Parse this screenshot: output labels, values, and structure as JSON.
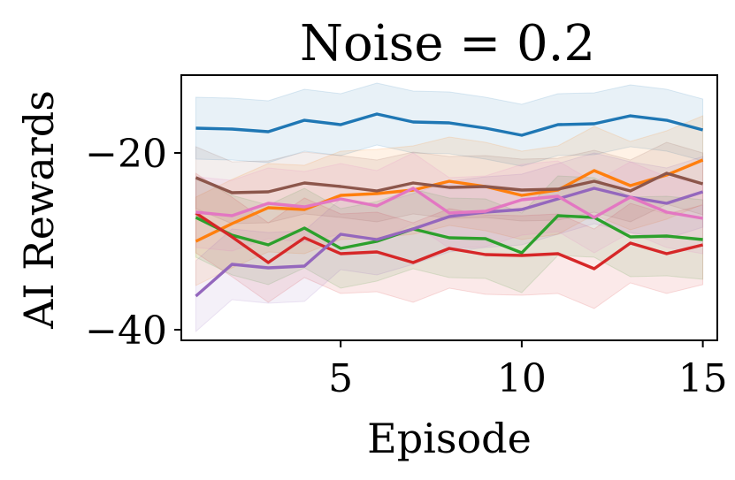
{
  "chart_data": {
    "type": "line",
    "title": "Noise = 0.2",
    "xlabel": "Episode",
    "ylabel": "AI Rewards",
    "xlim": [
      0.6,
      15.4
    ],
    "ylim": [
      -41.2,
      -11.2
    ],
    "xticks": [
      5,
      10,
      15
    ],
    "xtick_labels": [
      "5",
      "10",
      "15"
    ],
    "yticks": [
      -20,
      -40
    ],
    "ytick_labels": [
      "−20",
      "−40"
    ],
    "grid": false,
    "legend": "none",
    "x": [
      1,
      2,
      3,
      4,
      5,
      6,
      7,
      8,
      9,
      10,
      11,
      12,
      13,
      14,
      15
    ],
    "series": [
      {
        "name": "series-blue",
        "color": "#1f77b4",
        "band_width": 3.5,
        "values": [
          -17.2,
          -17.3,
          -17.6,
          -16.3,
          -16.8,
          -15.6,
          -16.5,
          -16.6,
          -17.2,
          -18.0,
          -16.8,
          -16.7,
          -15.8,
          -16.3,
          -17.4
        ]
      },
      {
        "name": "series-orange",
        "color": "#ff7f0e",
        "band_width": 5.0,
        "values": [
          -30.0,
          -28.0,
          -26.2,
          -26.4,
          -24.8,
          -24.6,
          -24.2,
          -23.2,
          -23.8,
          -24.8,
          -24.2,
          -22.0,
          -23.7,
          -22.5,
          -20.8
        ]
      },
      {
        "name": "series-green",
        "color": "#2ca02c",
        "band_width": 4.5,
        "values": [
          -27.3,
          -29.3,
          -30.4,
          -28.5,
          -30.8,
          -30.0,
          -28.6,
          -29.6,
          -29.7,
          -31.3,
          -27.1,
          -27.3,
          -29.5,
          -29.4,
          -29.8
        ]
      },
      {
        "name": "series-red",
        "color": "#d62728",
        "band_width": 4.5,
        "values": [
          -26.8,
          -29.5,
          -32.4,
          -29.6,
          -31.4,
          -31.2,
          -32.4,
          -30.8,
          -31.5,
          -31.6,
          -31.4,
          -33.1,
          -30.2,
          -31.4,
          -30.4
        ]
      },
      {
        "name": "series-purple",
        "color": "#9467bd",
        "band_width": 4.0,
        "values": [
          -36.2,
          -32.6,
          -33.0,
          -32.8,
          -29.2,
          -29.8,
          -28.6,
          -27.2,
          -26.7,
          -26.4,
          -25.2,
          -24.0,
          -25.0,
          -25.7,
          -24.4
        ]
      },
      {
        "name": "series-brown",
        "color": "#8c564b",
        "band_width": 3.5,
        "values": [
          -22.8,
          -24.5,
          -24.4,
          -23.4,
          -23.8,
          -24.3,
          -23.4,
          -23.9,
          -23.8,
          -24.2,
          -24.1,
          -23.2,
          -24.3,
          -22.3,
          -23.5
        ]
      },
      {
        "name": "series-pink",
        "color": "#e377c2",
        "band_width": 4.0,
        "values": [
          -26.7,
          -27.1,
          -25.7,
          -26.1,
          -25.2,
          -26.0,
          -24.0,
          -26.8,
          -26.6,
          -25.3,
          -24.9,
          -27.3,
          -25.0,
          -26.7,
          -27.4
        ]
      }
    ]
  }
}
